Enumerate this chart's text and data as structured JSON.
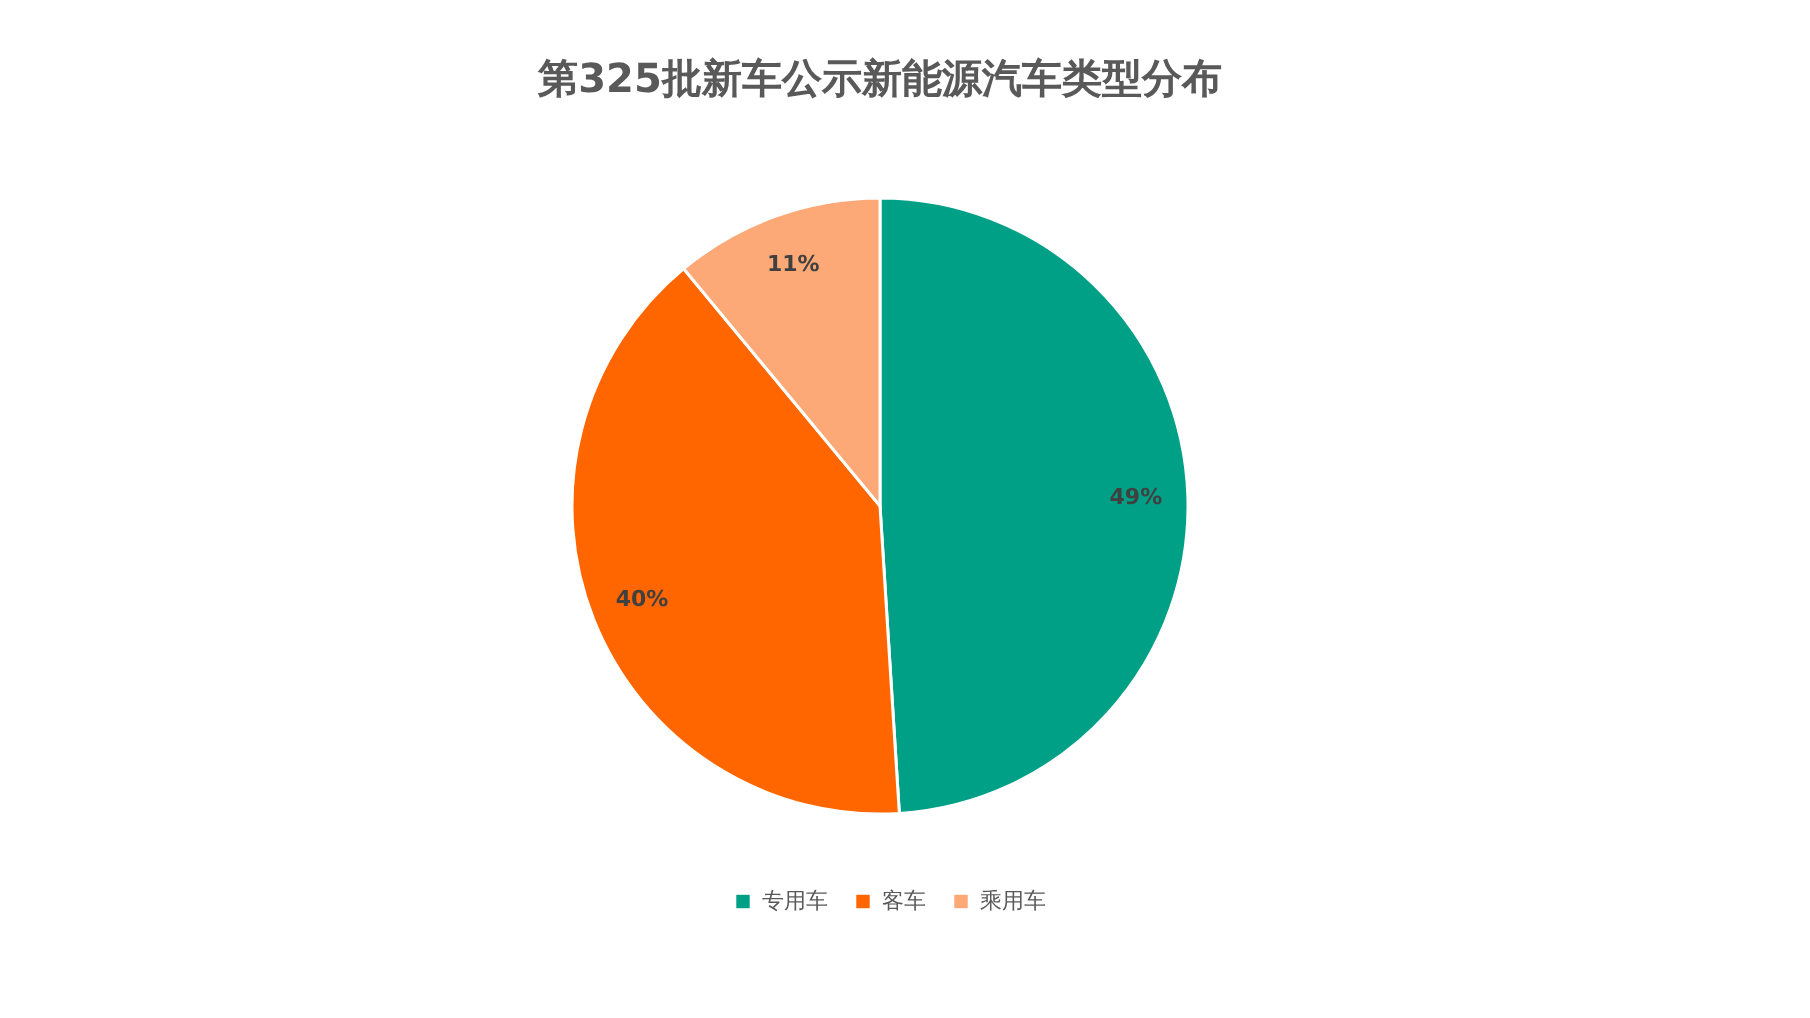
{
  "chart_data": {
    "type": "pie",
    "title": "第325批新车公示新能源汽车类型分布",
    "categories": [
      "专用车",
      "客车",
      "乘用车"
    ],
    "values": [
      49,
      40,
      11
    ],
    "colors": [
      "#00a087",
      "#ff6600",
      "#fca877"
    ],
    "value_labels": [
      "49%",
      "40%",
      "11%"
    ],
    "legend": "bottom"
  }
}
